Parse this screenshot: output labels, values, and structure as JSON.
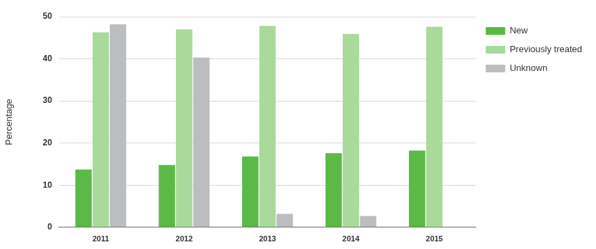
{
  "chart_data": {
    "type": "bar",
    "y_label": "Percentage",
    "categories": [
      "2011",
      "2012",
      "2013",
      "2014",
      "2015"
    ],
    "series": [
      {
        "name": "New",
        "color": "#5cb947",
        "values": [
          13.7,
          14.8,
          16.8,
          17.6,
          18.2
        ]
      },
      {
        "name": "Previously treated",
        "color": "#a9d99b",
        "values": [
          46.3,
          47.0,
          47.8,
          45.9,
          47.6
        ]
      },
      {
        "name": "Unknown",
        "color": "#bcbdc0",
        "values": [
          48.2,
          40.3,
          3.2,
          2.7,
          null
        ]
      }
    ],
    "ylim": [
      0,
      50
    ],
    "yticks": [
      0,
      10,
      20,
      30,
      40,
      50
    ],
    "grid": true,
    "legend": "right"
  }
}
